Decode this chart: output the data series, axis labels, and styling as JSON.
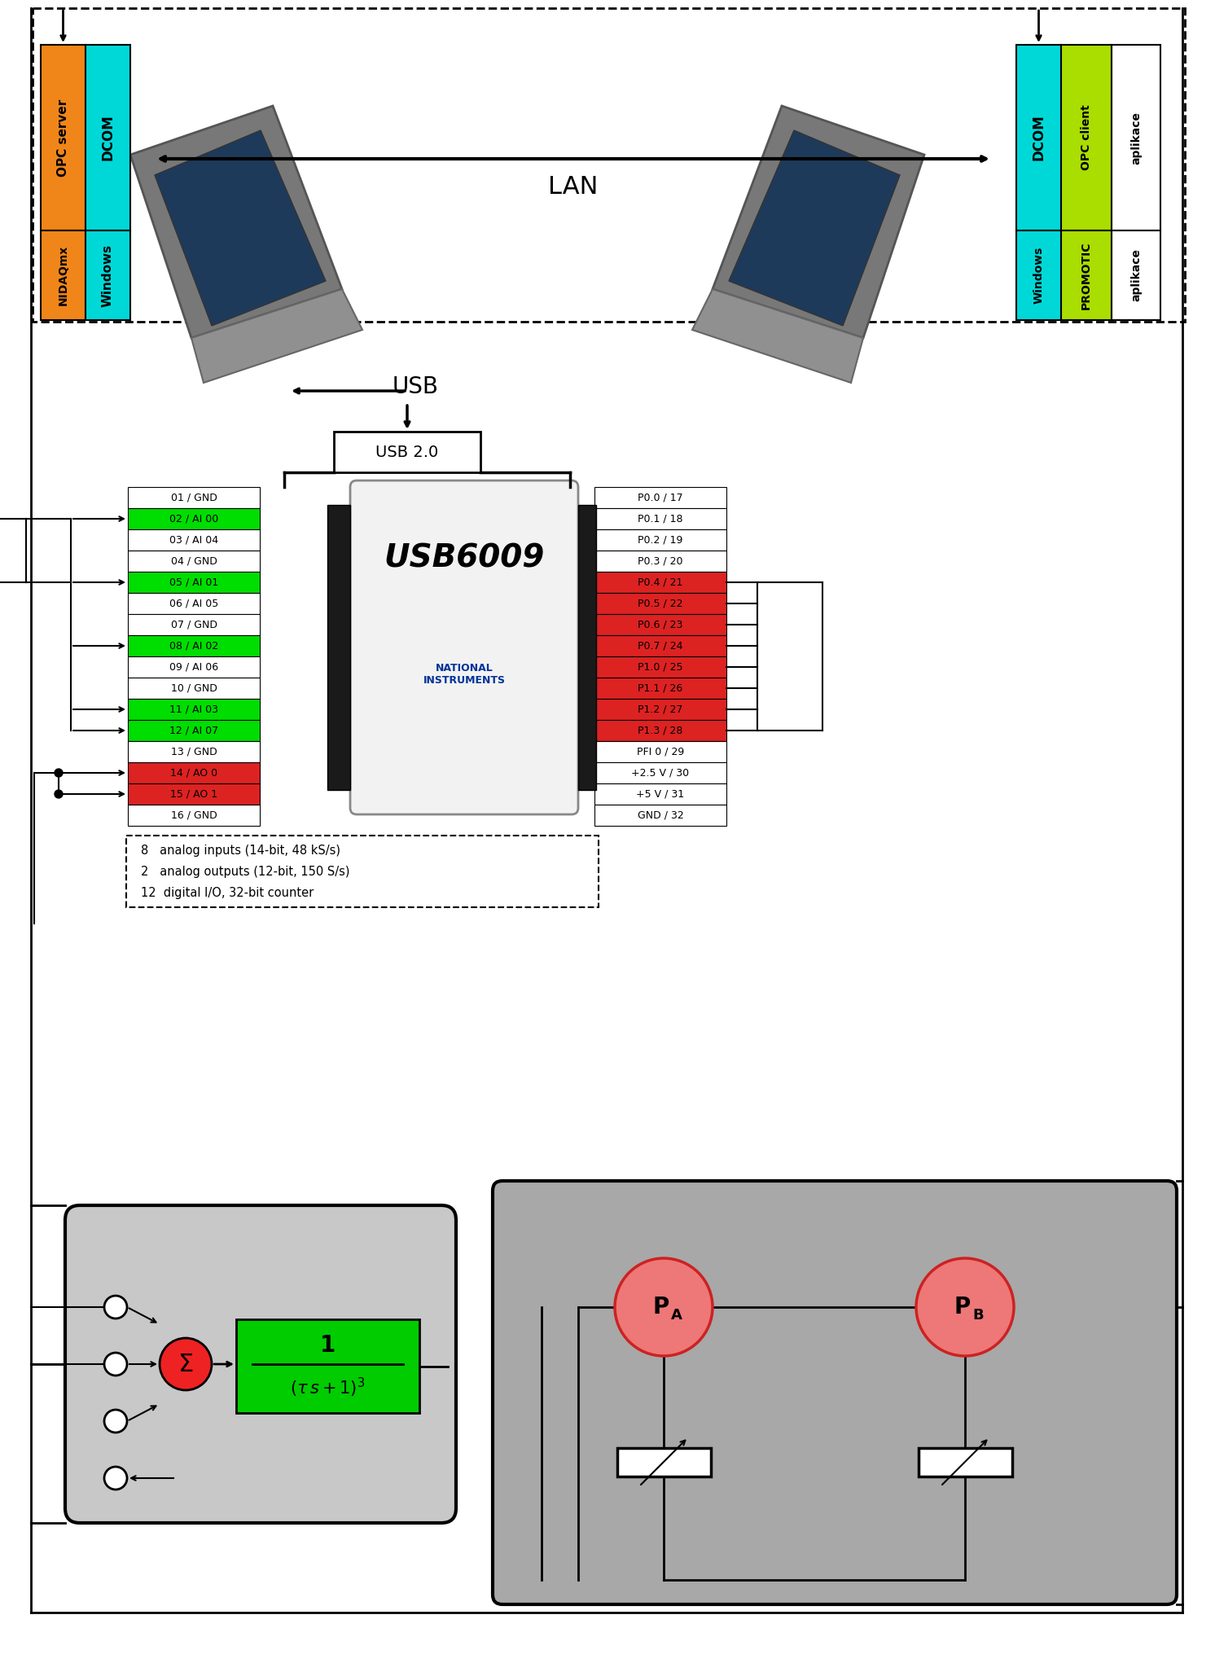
{
  "fig_width": 14.92,
  "fig_height": 20.42,
  "bg_color": "#ffffff",
  "orange_color": "#f0861a",
  "cyan_color": "#00d8d8",
  "green_color": "#aadd00",
  "left_pin_labels": [
    [
      "01 / GND",
      "#ffffff"
    ],
    [
      "02 / AI 00",
      "#00dd00"
    ],
    [
      "03 / AI 04",
      "#ffffff"
    ],
    [
      "04 / GND",
      "#ffffff"
    ],
    [
      "05 / AI 01",
      "#00dd00"
    ],
    [
      "06 / AI 05",
      "#ffffff"
    ],
    [
      "07 / GND",
      "#ffffff"
    ],
    [
      "08 / AI 02",
      "#00dd00"
    ],
    [
      "09 / AI 06",
      "#ffffff"
    ],
    [
      "10 / GND",
      "#ffffff"
    ],
    [
      "11 / AI 03",
      "#00dd00"
    ],
    [
      "12 / AI 07",
      "#00dd00"
    ],
    [
      "13 / GND",
      "#ffffff"
    ],
    [
      "14 / AO 0",
      "#dd2222"
    ],
    [
      "15 / AO 1",
      "#dd2222"
    ],
    [
      "16 / GND",
      "#ffffff"
    ]
  ],
  "right_pin_labels": [
    [
      "P0.0 / 17",
      "#ffffff"
    ],
    [
      "P0.1 / 18",
      "#ffffff"
    ],
    [
      "P0.2 / 19",
      "#ffffff"
    ],
    [
      "P0.3 / 20",
      "#ffffff"
    ],
    [
      "P0.4 / 21",
      "#dd2222"
    ],
    [
      "P0.5 / 22",
      "#dd2222"
    ],
    [
      "P0.6 / 23",
      "#dd2222"
    ],
    [
      "P0.7 / 24",
      "#dd2222"
    ],
    [
      "P1.0 / 25",
      "#dd2222"
    ],
    [
      "P1.1 / 26",
      "#dd2222"
    ],
    [
      "P1.2 / 27",
      "#dd2222"
    ],
    [
      "P1.3 / 28",
      "#dd2222"
    ],
    [
      "PFI 0 / 29",
      "#ffffff"
    ],
    [
      "+2.5 V / 30",
      "#ffffff"
    ],
    [
      "+5 V / 31",
      "#ffffff"
    ],
    [
      "GND / 32",
      "#ffffff"
    ]
  ],
  "usb_info": [
    "8   analog inputs (14-bit, 48 kS/s)",
    "2   analog outputs (12-bit, 150 S/s)",
    "12  digital I/O, 32-bit counter"
  ]
}
